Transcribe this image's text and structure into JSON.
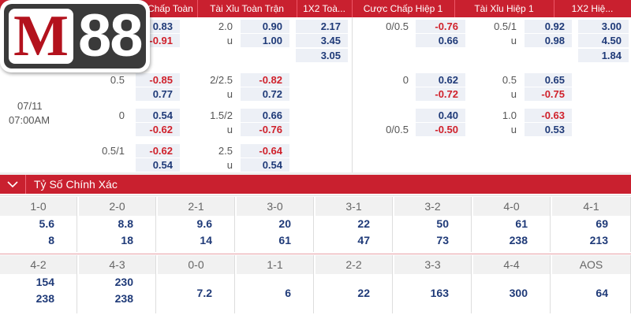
{
  "logo": {
    "letter": "M",
    "number": "88"
  },
  "odds": {
    "header": [
      "Cược Chấp Toàn ...",
      "Tài Xỉu Toàn Trận",
      "1X2 Toà...",
      "Cược Chấp Hiệp 1",
      "Tài Xỉu Hiệp 1",
      "1X2 Hiệ..."
    ],
    "date": "07/11",
    "time": "07:00AM",
    "rows": [
      [
        null,
        "0.83",
        "2.0",
        "0.90",
        "2.17",
        "0/0.5",
        "-0.76",
        "0.5/1",
        "0.92",
        "3.00"
      ],
      [
        null,
        "-0.91",
        "u",
        "1.00",
        "3.45",
        null,
        "0.66",
        "u",
        "0.98",
        "4.50"
      ],
      [
        null,
        null,
        null,
        null,
        "3.05",
        null,
        null,
        null,
        null,
        "1.84"
      ],
      [
        "0.5",
        "-0.85",
        "2/2.5",
        "-0.82",
        null,
        "0",
        "0.62",
        "0.5",
        "0.65",
        null
      ],
      [
        null,
        "0.77",
        "u",
        "0.72",
        null,
        null,
        "-0.72",
        "u",
        "-0.75",
        null
      ],
      [
        "0",
        "0.54",
        "1.5/2",
        "0.66",
        null,
        null,
        "0.40",
        "1.0",
        "-0.63",
        null
      ],
      [
        null,
        "-0.62",
        "u",
        "-0.76",
        null,
        "0/0.5",
        "-0.50",
        "u",
        "0.53",
        null
      ],
      [
        "0.5/1",
        "-0.62",
        "2.5",
        "-0.64",
        null,
        null,
        null,
        null,
        null,
        null
      ],
      [
        null,
        "0.54",
        "u",
        "0.54",
        null,
        null,
        null,
        null,
        null,
        null
      ]
    ]
  },
  "scores": {
    "title": "Tỷ Số Chính Xác",
    "blocks": [
      {
        "headers": [
          "1-0",
          "2-0",
          "2-1",
          "3-0",
          "3-1",
          "3-2",
          "4-0",
          "4-1"
        ],
        "values": [
          [
            5.6,
            8
          ],
          [
            8.8,
            18
          ],
          [
            9.6,
            14
          ],
          [
            20,
            61
          ],
          [
            22,
            47
          ],
          [
            50,
            73
          ],
          [
            61,
            238
          ],
          [
            69,
            213
          ]
        ]
      },
      {
        "headers": [
          "4-2",
          "4-3",
          "0-0",
          "1-1",
          "2-2",
          "3-3",
          "4-4",
          "AOS"
        ],
        "values": [
          [
            154,
            238
          ],
          [
            230,
            238
          ],
          [
            7.2
          ],
          [
            6
          ],
          [
            22
          ],
          [
            163
          ],
          [
            300
          ],
          [
            64
          ]
        ]
      }
    ]
  }
}
